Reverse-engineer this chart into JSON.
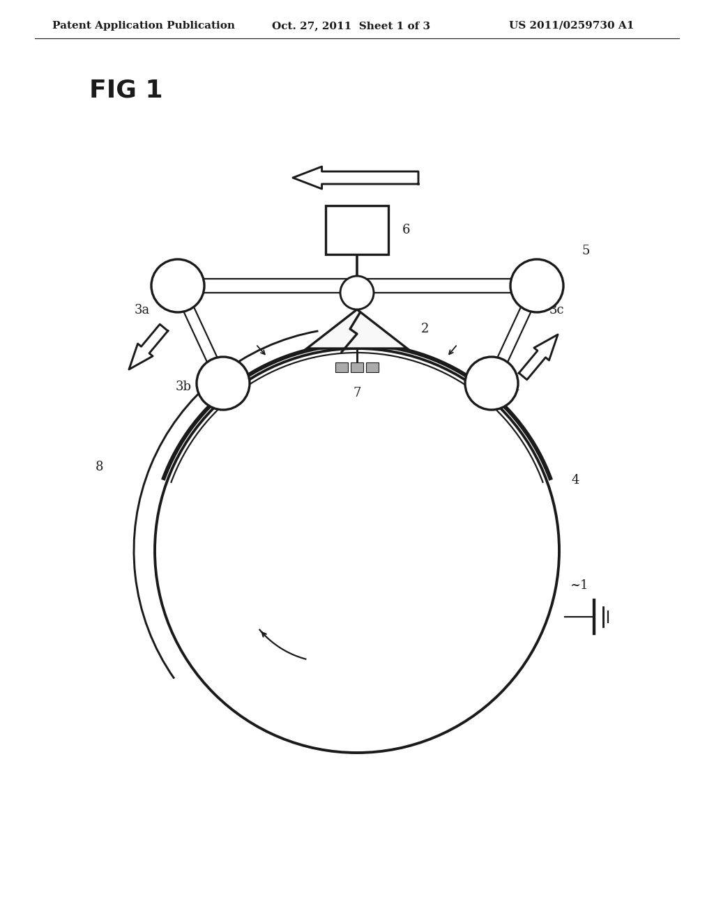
{
  "background_color": "#ffffff",
  "header_left": "Patent Application Publication",
  "header_center": "Oct. 27, 2011  Sheet 1 of 3",
  "header_right": "US 2011/0259730 A1",
  "fig_label": "FIG 1",
  "line_color": "#1a1a1a",
  "lw": 1.6,
  "tlw": 2.8
}
